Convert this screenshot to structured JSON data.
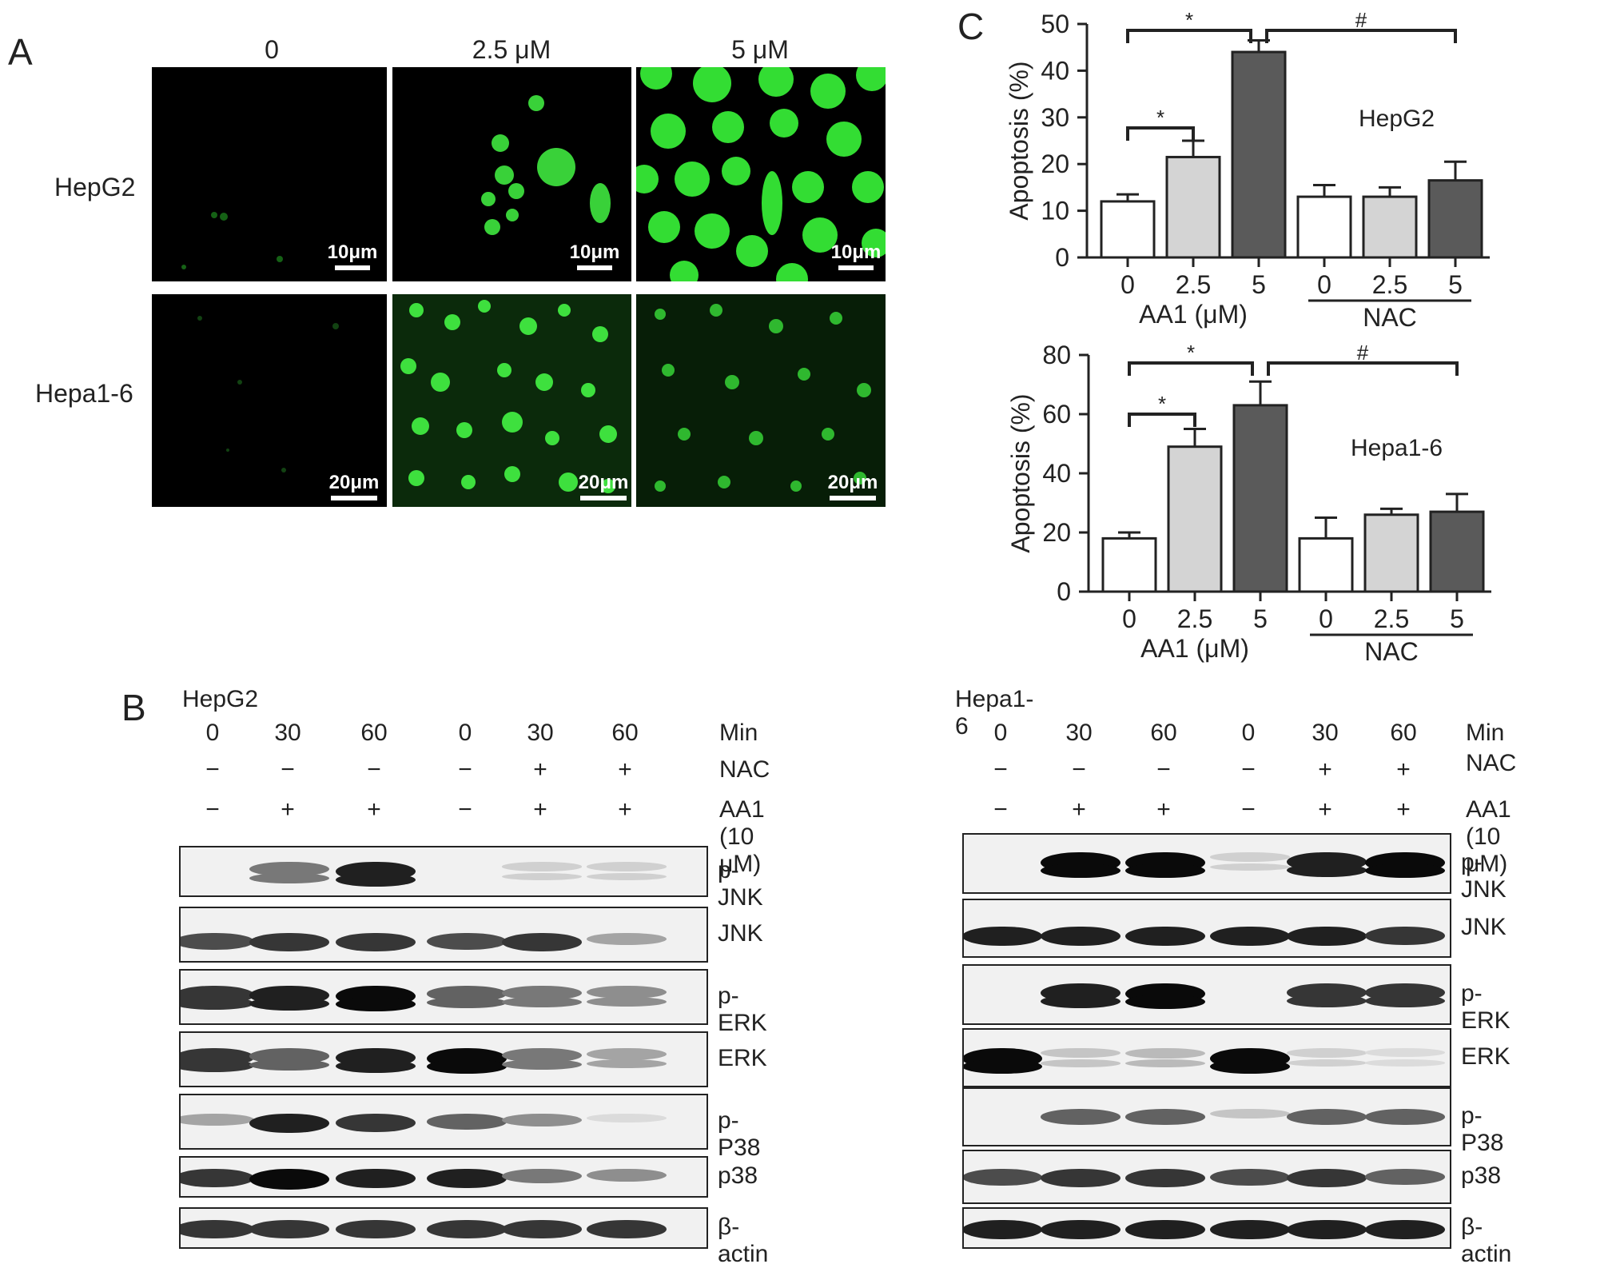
{
  "panels": {
    "a": "A",
    "b": "B",
    "c": "C"
  },
  "panel_a": {
    "columns": [
      "0",
      "2.5 μM",
      "5 μM"
    ],
    "rows": [
      {
        "label": "HepG2",
        "scale": "10μm"
      },
      {
        "label": "Hepa1-6",
        "scale": "20μm"
      }
    ]
  },
  "panel_b": {
    "blocks": [
      {
        "cell_line": "HepG2",
        "time_label": "Min",
        "times": [
          "0",
          "30",
          "60",
          "0",
          "30",
          "60"
        ],
        "nac_label": "NAC",
        "nac": [
          "−",
          "−",
          "−",
          "−",
          "+",
          "+"
        ],
        "aa1_label": "AA1 (10 μM)",
        "aa1": [
          "−",
          "+",
          "+",
          "−",
          "+",
          "+"
        ],
        "blots": [
          "p-JNK",
          "JNK",
          "p-ERK",
          "ERK",
          "p-P38",
          "p38",
          "β-actin"
        ]
      },
      {
        "cell_line": "Hepa1-6",
        "time_label": "Min",
        "times": [
          "0",
          "30",
          "60",
          "0",
          "30",
          "60"
        ],
        "nac_label": "NAC",
        "nac": [
          "−",
          "−",
          "−",
          "−",
          "+",
          "+"
        ],
        "aa1_label": "AA1 (10 μM)",
        "aa1": [
          "−",
          "+",
          "+",
          "−",
          "+",
          "+"
        ],
        "blots": [
          "p-JNK",
          "JNK",
          "p-ERK",
          "ERK",
          "p-P38",
          "p38",
          "β-actin"
        ]
      }
    ]
  },
  "chart_data": [
    {
      "type": "bar",
      "title": "HepG2",
      "ylabel": "Apoptosis (%)",
      "xlabel": "AA1 (μM)",
      "group_label": "NAC",
      "categories": [
        "0",
        "2.5",
        "5",
        "0",
        "2.5",
        "5"
      ],
      "values": [
        12,
        21.5,
        44,
        13,
        13,
        16.5
      ],
      "errors": [
        1.5,
        3.5,
        2.5,
        2.5,
        2,
        4
      ],
      "ylim": [
        0,
        50
      ],
      "yticks": [
        0,
        10,
        20,
        30,
        40,
        50
      ],
      "significance": [
        {
          "from": 0,
          "to": 1,
          "label": "*"
        },
        {
          "from": 0,
          "to": 2,
          "label": "*"
        },
        {
          "from": 2,
          "to": 5,
          "label": "#"
        }
      ],
      "colors": [
        "#ffffff",
        "#d4d4d4",
        "#5a5a5a",
        "#ffffff",
        "#d4d4d4",
        "#5a5a5a"
      ]
    },
    {
      "type": "bar",
      "title": "Hepa1-6",
      "ylabel": "Apoptosis (%)",
      "xlabel": "AA1 (μM)",
      "group_label": "NAC",
      "categories": [
        "0",
        "2.5",
        "5",
        "0",
        "2.5",
        "5"
      ],
      "values": [
        18,
        49,
        63,
        18,
        26,
        27
      ],
      "errors": [
        2,
        6,
        8,
        7,
        2,
        6
      ],
      "ylim": [
        0,
        80
      ],
      "yticks": [
        0,
        20,
        40,
        60,
        80
      ],
      "significance": [
        {
          "from": 0,
          "to": 1,
          "label": "*"
        },
        {
          "from": 0,
          "to": 2,
          "label": "*"
        },
        {
          "from": 2,
          "to": 5,
          "label": "#"
        }
      ],
      "colors": [
        "#ffffff",
        "#d4d4d4",
        "#5a5a5a",
        "#ffffff",
        "#d4d4d4",
        "#5a5a5a"
      ]
    }
  ]
}
